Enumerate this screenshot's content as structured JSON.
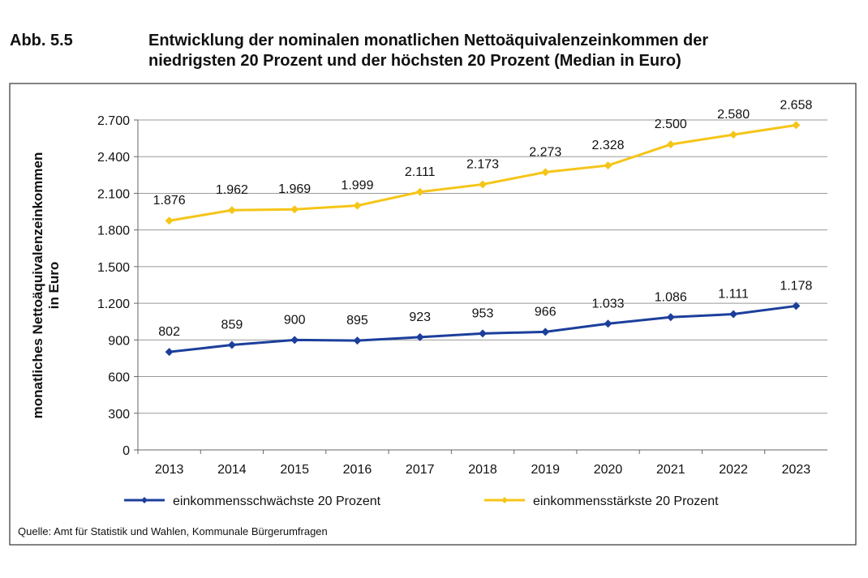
{
  "figure_label": "Abb. 5.5",
  "title_line1": "Entwicklung der nominalen monatlichen Nettoäquivalenzeinkommen der",
  "title_line2": "niedrigsten 20 Prozent und der höchsten 20 Prozent (Median in Euro)",
  "source": "Quelle:  Amt für Statistik und Wahlen,  Kommunale  Bürgerumfragen",
  "chart_data": {
    "type": "line",
    "ylabel_line1": "monatliches Nettoäquivalenzeinkommen",
    "ylabel_line2": "in Euro",
    "categories": [
      "2013",
      "2014",
      "2015",
      "2016",
      "2017",
      "2018",
      "2019",
      "2020",
      "2021",
      "2022",
      "2023"
    ],
    "ylim": [
      0,
      2700
    ],
    "yticks": [
      0,
      300,
      600,
      900,
      1200,
      1500,
      1800,
      2100,
      2400,
      2700
    ],
    "ytick_labels": [
      "0",
      "300",
      "600",
      "900",
      "1.200",
      "1.500",
      "1.800",
      "2.100",
      "2.400",
      "2.700"
    ],
    "grid": true,
    "legend_placement": "bottom",
    "series": [
      {
        "name": "einkommensschwächste 20 Prozent",
        "color": "#1c3f9c",
        "values": [
          802,
          859,
          900,
          895,
          923,
          953,
          966,
          1033,
          1086,
          1111,
          1178
        ],
        "labels": [
          "802",
          "859",
          "900",
          "895",
          "923",
          "953",
          "966",
          "1.033",
          "1.086",
          "1.111",
          "1.178"
        ]
      },
      {
        "name": "einkommensstärkste 20 Prozent",
        "color": "#f5c518",
        "values": [
          1876,
          1962,
          1969,
          1999,
          2111,
          2173,
          2273,
          2328,
          2500,
          2580,
          2658
        ],
        "labels": [
          "1.876",
          "1.962",
          "1.969",
          "1.999",
          "2.111",
          "2.173",
          "2.273",
          "2.328",
          "2.500",
          "2.580",
          "2.658"
        ]
      }
    ]
  }
}
